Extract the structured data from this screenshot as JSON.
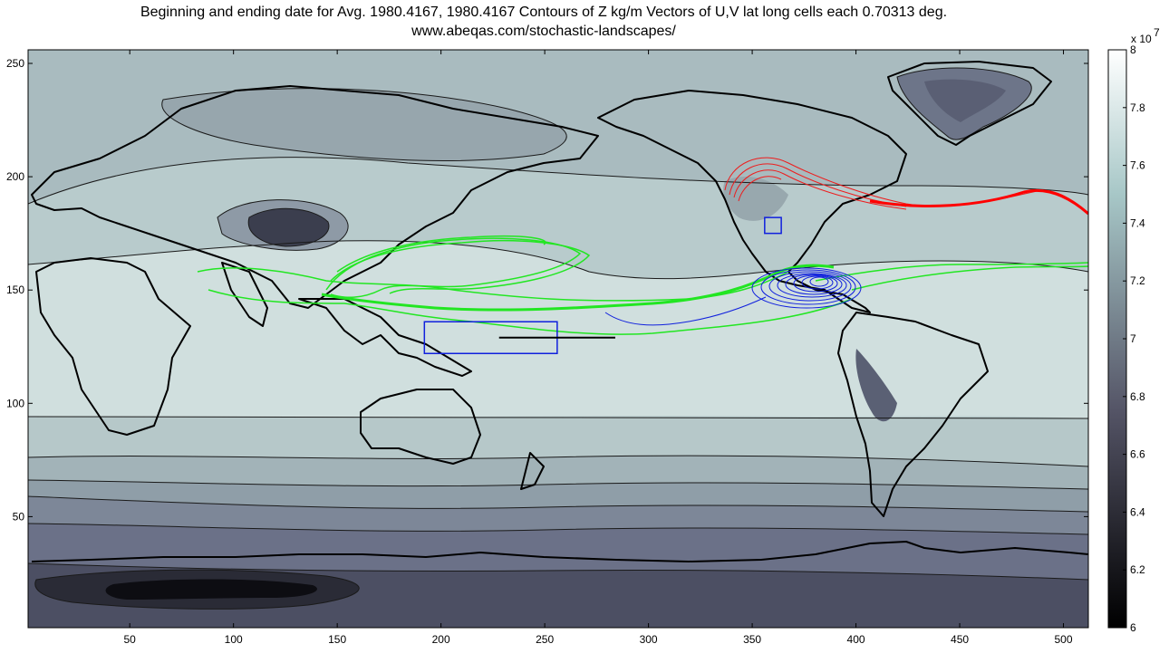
{
  "chart_data": {
    "type": "heatmap",
    "title": "Beginning and ending date for Avg.  1980.4167, 1980.4167 Contours of Z kg/m  Vectors of U,V  lat long cells each 0.70313 deg.",
    "subtitle": "www.abeqas.com/stochastic-landscapes/",
    "xlabel": "",
    "ylabel": "",
    "xlim": [
      1,
      512
    ],
    "ylim": [
      1,
      256
    ],
    "x_ticks": [
      50,
      100,
      150,
      200,
      250,
      300,
      350,
      400,
      450,
      500
    ],
    "y_ticks": [
      50,
      100,
      150,
      200,
      250
    ],
    "colorbar": {
      "range": [
        6,
        8
      ],
      "exponent_label": "x 10",
      "exponent_power": "7",
      "ticks": [
        "6",
        "6.2",
        "6.4",
        "6.6",
        "6.8",
        "7",
        "7.2",
        "7.4",
        "7.6",
        "7.8",
        "8"
      ],
      "colormap": "bone"
    },
    "colors": {
      "tropics": "#cfdedd",
      "midlat": "#b7cacb",
      "subpolar": "#a7b8bd",
      "polar": "#8e9aa6",
      "south_mid": "#727c8e",
      "south_deep": "#5f637a",
      "antarctic": "#3a3c4c",
      "green_trajectory": "#22e622",
      "red_trajectory": "#ff0000",
      "blue_trajectory": "#1020dd"
    },
    "annotations": [
      {
        "type": "rectangle",
        "x": [
          192,
          256
        ],
        "y": [
          122,
          136
        ],
        "color": "#1020dd"
      },
      {
        "type": "rectangle",
        "x": [
          356,
          364
        ],
        "y": [
          175,
          182
        ],
        "color": "#1020dd"
      },
      {
        "type": "line",
        "x": [
          228,
          284
        ],
        "y": [
          129,
          129
        ],
        "color": "#000000"
      }
    ]
  }
}
